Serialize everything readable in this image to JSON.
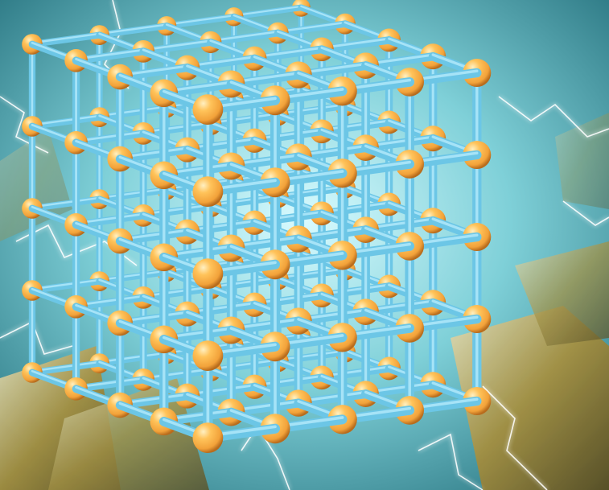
{
  "colors": {
    "background_teal": "#2f8c98",
    "background_light": "#bfeff1",
    "rock_gold": "#a98e3a",
    "bond_blue": "#6cc6e6",
    "bond_highlight": "#bff0ff",
    "atom_orange": "#f2a23a",
    "atom_highlight": "#ffe2a0",
    "lightning": "#ffffff"
  },
  "lattice": {
    "description_visible": false,
    "points_per_edge": 5
  }
}
